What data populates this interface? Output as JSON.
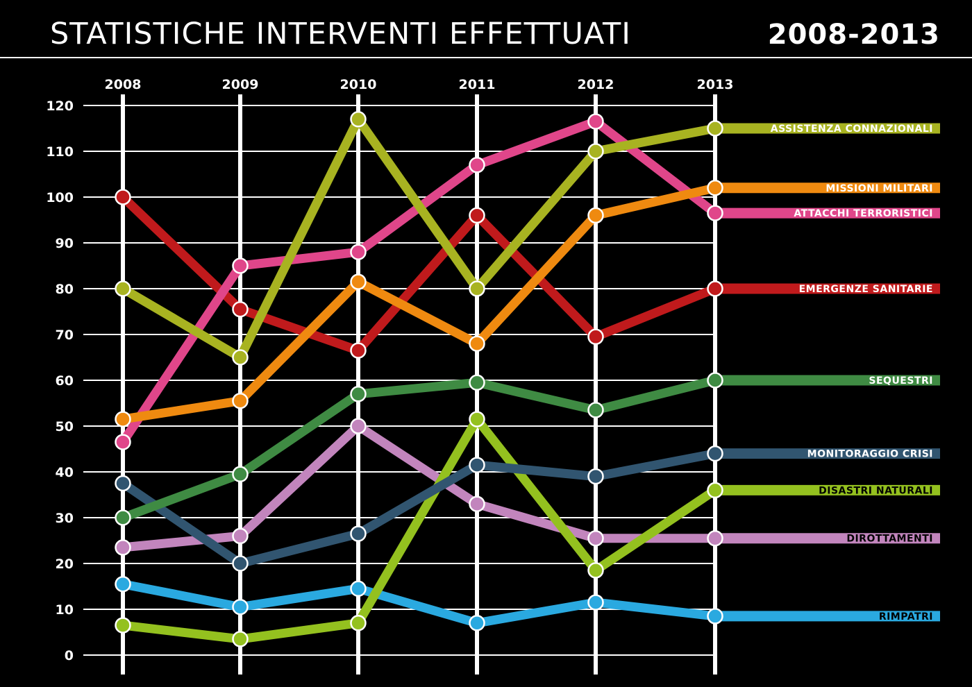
{
  "title": "STATISTICHE INTERVENTI EFFETTUATI",
  "period": "2008-2013",
  "chart_data": {
    "type": "line",
    "x": [
      "2008",
      "2009",
      "2010",
      "2011",
      "2012",
      "2013"
    ],
    "ylim": [
      0,
      120
    ],
    "y_ticks": [
      "0",
      "10",
      "20",
      "30",
      "40",
      "50",
      "60",
      "70",
      "80",
      "90",
      "100",
      "110",
      "120"
    ],
    "grid": true,
    "legend": "right, series labels at line ends",
    "series": [
      {
        "name": "ASSISTENZA CONNAZIONALI",
        "color": "#a8b321",
        "label_color": "#a8b321",
        "values": [
          80,
          65,
          117,
          80,
          110,
          115
        ]
      },
      {
        "name": "MISSIONI MILITARI",
        "color": "#ef8a10",
        "label_color": "#ef8a10",
        "values": [
          51.5,
          55.5,
          81.5,
          68,
          96,
          102
        ]
      },
      {
        "name": "ATTACCHI TERRORISTICI",
        "color": "#e0468a",
        "label_color": "#e0468a",
        "values": [
          46.5,
          85,
          88,
          107,
          116.5,
          96.5
        ]
      },
      {
        "name": "EMERGENZE SANITARIE",
        "color": "#c01a1c",
        "label_color": "#c01a1c",
        "values": [
          100,
          75.5,
          66.5,
          96,
          69.5,
          80
        ]
      },
      {
        "name": "SEQUESTRI",
        "color": "#3f8b43",
        "label_color": "#3f8b43",
        "values": [
          30,
          39.5,
          57,
          59.5,
          53.5,
          60
        ]
      },
      {
        "name": "MONITORAGGIO CRISI",
        "color": "#315570",
        "label_color": "#315570",
        "values": [
          37.5,
          20,
          26.5,
          41.5,
          39,
          44
        ]
      },
      {
        "name": "DISASTRI NATURALI",
        "color": "#94c11f",
        "label_color": "#94c11f",
        "values": [
          6.5,
          3.5,
          7,
          51.5,
          18.5,
          36
        ]
      },
      {
        "name": "DIROTTAMENTI",
        "color": "#c285bd",
        "label_color": "#c285bd",
        "values": [
          23.5,
          26,
          50,
          33,
          25.5,
          25.5
        ]
      },
      {
        "name": "RIMPATRI",
        "color": "#2aa9e0",
        "label_color": "#2aa9e0",
        "values": [
          15.5,
          10.5,
          14.5,
          7,
          11.5,
          8.5
        ]
      }
    ]
  }
}
